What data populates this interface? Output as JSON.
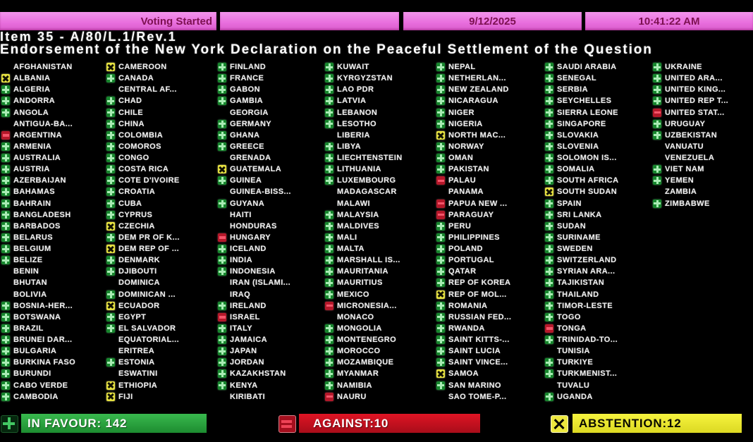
{
  "status_bar": {
    "status": "Voting Started",
    "date": "9/12/2025",
    "time": "10:41:22 AM"
  },
  "header": {
    "item_line": "Item 35 - A/80/L.1/Rev.1",
    "title_line": "Endorsement of the New York Declaration on the Peaceful Settlement of the Question"
  },
  "votes": {
    "legend": {
      "Y": "in favour (green plus)",
      "N": "against (red minus)",
      "A": "abstention (yellow x)",
      "": "no vote shown"
    },
    "columns": [
      [
        {
          "name": "AFGHANISTAN",
          "vote": ""
        },
        {
          "name": "ALBANIA",
          "vote": "A"
        },
        {
          "name": "ALGERIA",
          "vote": "Y"
        },
        {
          "name": "ANDORRA",
          "vote": "Y"
        },
        {
          "name": "ANGOLA",
          "vote": "Y"
        },
        {
          "name": "ANTIGUA-BA...",
          "vote": ""
        },
        {
          "name": "ARGENTINA",
          "vote": "N"
        },
        {
          "name": "ARMENIA",
          "vote": "Y"
        },
        {
          "name": "AUSTRALIA",
          "vote": "Y"
        },
        {
          "name": "AUSTRIA",
          "vote": "Y"
        },
        {
          "name": "AZERBAIJAN",
          "vote": "Y"
        },
        {
          "name": "BAHAMAS",
          "vote": "Y"
        },
        {
          "name": "BAHRAIN",
          "vote": "Y"
        },
        {
          "name": "BANGLADESH",
          "vote": "Y"
        },
        {
          "name": "BARBADOS",
          "vote": "Y"
        },
        {
          "name": "BELARUS",
          "vote": "Y"
        },
        {
          "name": "BELGIUM",
          "vote": "Y"
        },
        {
          "name": "BELIZE",
          "vote": "Y"
        },
        {
          "name": "BENIN",
          "vote": ""
        },
        {
          "name": "BHUTAN",
          "vote": ""
        },
        {
          "name": "BOLIVIA",
          "vote": ""
        },
        {
          "name": "BOSNIA-HER...",
          "vote": "Y"
        },
        {
          "name": "BOTSWANA",
          "vote": "Y"
        },
        {
          "name": "BRAZIL",
          "vote": "Y"
        },
        {
          "name": "BRUNEI DAR...",
          "vote": "Y"
        },
        {
          "name": "BULGARIA",
          "vote": "Y"
        },
        {
          "name": "BURKINA FASO",
          "vote": "Y"
        },
        {
          "name": "BURUNDI",
          "vote": "Y"
        },
        {
          "name": "CABO VERDE",
          "vote": "Y"
        },
        {
          "name": "CAMBODIA",
          "vote": "Y"
        }
      ],
      [
        {
          "name": "CAMEROON",
          "vote": "A"
        },
        {
          "name": "CANADA",
          "vote": "Y"
        },
        {
          "name": "CENTRAL AF...",
          "vote": ""
        },
        {
          "name": "CHAD",
          "vote": "Y"
        },
        {
          "name": "CHILE",
          "vote": "Y"
        },
        {
          "name": "CHINA",
          "vote": "Y"
        },
        {
          "name": "COLOMBIA",
          "vote": "Y"
        },
        {
          "name": "COMOROS",
          "vote": "Y"
        },
        {
          "name": "CONGO",
          "vote": "Y"
        },
        {
          "name": "COSTA RICA",
          "vote": "Y"
        },
        {
          "name": "COTE D'IVOIRE",
          "vote": "Y"
        },
        {
          "name": "CROATIA",
          "vote": "Y"
        },
        {
          "name": "CUBA",
          "vote": "Y"
        },
        {
          "name": "CYPRUS",
          "vote": "Y"
        },
        {
          "name": "CZECHIA",
          "vote": "A"
        },
        {
          "name": "DEM PR OF K...",
          "vote": "Y"
        },
        {
          "name": "DEM REP OF ...",
          "vote": "A"
        },
        {
          "name": "DENMARK",
          "vote": "Y"
        },
        {
          "name": "DJIBOUTI",
          "vote": "Y"
        },
        {
          "name": "DOMINICA",
          "vote": ""
        },
        {
          "name": "DOMINICAN ...",
          "vote": "Y"
        },
        {
          "name": "ECUADOR",
          "vote": "A"
        },
        {
          "name": "EGYPT",
          "vote": "Y"
        },
        {
          "name": "EL SALVADOR",
          "vote": "Y"
        },
        {
          "name": "EQUATORIAL...",
          "vote": ""
        },
        {
          "name": "ERITREA",
          "vote": ""
        },
        {
          "name": "ESTONIA",
          "vote": "Y"
        },
        {
          "name": "ESWATINI",
          "vote": ""
        },
        {
          "name": "ETHIOPIA",
          "vote": "A"
        },
        {
          "name": "FIJI",
          "vote": "A"
        }
      ],
      [
        {
          "name": "FINLAND",
          "vote": "Y"
        },
        {
          "name": "FRANCE",
          "vote": "Y"
        },
        {
          "name": "GABON",
          "vote": "Y"
        },
        {
          "name": "GAMBIA",
          "vote": "Y"
        },
        {
          "name": "GEORGIA",
          "vote": ""
        },
        {
          "name": "GERMANY",
          "vote": "Y"
        },
        {
          "name": "GHANA",
          "vote": "Y"
        },
        {
          "name": "GREECE",
          "vote": "Y"
        },
        {
          "name": "GRENADA",
          "vote": ""
        },
        {
          "name": "GUATEMALA",
          "vote": "A"
        },
        {
          "name": "GUINEA",
          "vote": "Y"
        },
        {
          "name": "GUINEA-BISS...",
          "vote": ""
        },
        {
          "name": "GUYANA",
          "vote": "Y"
        },
        {
          "name": "HAITI",
          "vote": ""
        },
        {
          "name": "HONDURAS",
          "vote": ""
        },
        {
          "name": "HUNGARY",
          "vote": "N"
        },
        {
          "name": "ICELAND",
          "vote": "Y"
        },
        {
          "name": "INDIA",
          "vote": "Y"
        },
        {
          "name": "INDONESIA",
          "vote": "Y"
        },
        {
          "name": "IRAN (ISLAMI...",
          "vote": ""
        },
        {
          "name": "IRAQ",
          "vote": ""
        },
        {
          "name": "IRELAND",
          "vote": "Y"
        },
        {
          "name": "ISRAEL",
          "vote": "N"
        },
        {
          "name": "ITALY",
          "vote": "Y"
        },
        {
          "name": "JAMAICA",
          "vote": "Y"
        },
        {
          "name": "JAPAN",
          "vote": "Y"
        },
        {
          "name": "JORDAN",
          "vote": "Y"
        },
        {
          "name": "KAZAKHSTAN",
          "vote": "Y"
        },
        {
          "name": "KENYA",
          "vote": "Y"
        },
        {
          "name": "KIRIBATI",
          "vote": ""
        }
      ],
      [
        {
          "name": "KUWAIT",
          "vote": "Y"
        },
        {
          "name": "KYRGYZSTAN",
          "vote": "Y"
        },
        {
          "name": "LAO PDR",
          "vote": "Y"
        },
        {
          "name": "LATVIA",
          "vote": "Y"
        },
        {
          "name": "LEBANON",
          "vote": "Y"
        },
        {
          "name": "LESOTHO",
          "vote": "Y"
        },
        {
          "name": "LIBERIA",
          "vote": ""
        },
        {
          "name": "LIBYA",
          "vote": "Y"
        },
        {
          "name": "LIECHTENSTEIN",
          "vote": "Y"
        },
        {
          "name": "LITHUANIA",
          "vote": "Y"
        },
        {
          "name": "LUXEMBOURG",
          "vote": "Y"
        },
        {
          "name": "MADAGASCAR",
          "vote": ""
        },
        {
          "name": "MALAWI",
          "vote": ""
        },
        {
          "name": "MALAYSIA",
          "vote": "Y"
        },
        {
          "name": "MALDIVES",
          "vote": "Y"
        },
        {
          "name": "MALI",
          "vote": "Y"
        },
        {
          "name": "MALTA",
          "vote": "Y"
        },
        {
          "name": "MARSHALL IS...",
          "vote": "Y"
        },
        {
          "name": "MAURITANIA",
          "vote": "Y"
        },
        {
          "name": "MAURITIUS",
          "vote": "Y"
        },
        {
          "name": "MEXICO",
          "vote": "Y"
        },
        {
          "name": "MICRONESIA...",
          "vote": "N"
        },
        {
          "name": "MONACO",
          "vote": ""
        },
        {
          "name": "MONGOLIA",
          "vote": "Y"
        },
        {
          "name": "MONTENEGRO",
          "vote": "Y"
        },
        {
          "name": "MOROCCO",
          "vote": "Y"
        },
        {
          "name": "MOZAMBIQUE",
          "vote": "Y"
        },
        {
          "name": "MYANMAR",
          "vote": "Y"
        },
        {
          "name": "NAMIBIA",
          "vote": "Y"
        },
        {
          "name": "NAURU",
          "vote": "N"
        }
      ],
      [
        {
          "name": "NEPAL",
          "vote": "Y"
        },
        {
          "name": "NETHERLAN...",
          "vote": "Y"
        },
        {
          "name": "NEW ZEALAND",
          "vote": "Y"
        },
        {
          "name": "NICARAGUA",
          "vote": "Y"
        },
        {
          "name": "NIGER",
          "vote": "Y"
        },
        {
          "name": "NIGERIA",
          "vote": "Y"
        },
        {
          "name": "NORTH MAC...",
          "vote": "A"
        },
        {
          "name": "NORWAY",
          "vote": "Y"
        },
        {
          "name": "OMAN",
          "vote": "Y"
        },
        {
          "name": "PAKISTAN",
          "vote": "Y"
        },
        {
          "name": "PALAU",
          "vote": "N"
        },
        {
          "name": "PANAMA",
          "vote": ""
        },
        {
          "name": "PAPUA NEW ...",
          "vote": "N"
        },
        {
          "name": "PARAGUAY",
          "vote": "N"
        },
        {
          "name": "PERU",
          "vote": "Y"
        },
        {
          "name": "PHILIPPINES",
          "vote": "Y"
        },
        {
          "name": "POLAND",
          "vote": "Y"
        },
        {
          "name": "PORTUGAL",
          "vote": "Y"
        },
        {
          "name": "QATAR",
          "vote": "Y"
        },
        {
          "name": "REP OF KOREA",
          "vote": "Y"
        },
        {
          "name": "REP OF MOL...",
          "vote": "A"
        },
        {
          "name": "ROMANIA",
          "vote": "Y"
        },
        {
          "name": "RUSSIAN FED...",
          "vote": "Y"
        },
        {
          "name": "RWANDA",
          "vote": "Y"
        },
        {
          "name": "SAINT KITTS-...",
          "vote": "Y"
        },
        {
          "name": "SAINT LUCIA",
          "vote": "Y"
        },
        {
          "name": "SAINT VINCE...",
          "vote": "Y"
        },
        {
          "name": "SAMOA",
          "vote": "A"
        },
        {
          "name": "SAN MARINO",
          "vote": "Y"
        },
        {
          "name": "SAO TOME-P...",
          "vote": ""
        }
      ],
      [
        {
          "name": "SAUDI ARABIA",
          "vote": "Y"
        },
        {
          "name": "SENEGAL",
          "vote": "Y"
        },
        {
          "name": "SERBIA",
          "vote": "Y"
        },
        {
          "name": "SEYCHELLES",
          "vote": "Y"
        },
        {
          "name": "SIERRA LEONE",
          "vote": "Y"
        },
        {
          "name": "SINGAPORE",
          "vote": "Y"
        },
        {
          "name": "SLOVAKIA",
          "vote": "Y"
        },
        {
          "name": "SLOVENIA",
          "vote": "Y"
        },
        {
          "name": "SOLOMON IS...",
          "vote": "Y"
        },
        {
          "name": "SOMALIA",
          "vote": "Y"
        },
        {
          "name": "SOUTH AFRICA",
          "vote": "Y"
        },
        {
          "name": "SOUTH SUDAN",
          "vote": "A"
        },
        {
          "name": "SPAIN",
          "vote": "Y"
        },
        {
          "name": "SRI LANKA",
          "vote": "Y"
        },
        {
          "name": "SUDAN",
          "vote": "Y"
        },
        {
          "name": "SURINAME",
          "vote": "Y"
        },
        {
          "name": "SWEDEN",
          "vote": "Y"
        },
        {
          "name": "SWITZERLAND",
          "vote": "Y"
        },
        {
          "name": "SYRIAN ARA...",
          "vote": "Y"
        },
        {
          "name": "TAJIKISTAN",
          "vote": "Y"
        },
        {
          "name": "THAILAND",
          "vote": "Y"
        },
        {
          "name": "TIMOR-LESTE",
          "vote": "Y"
        },
        {
          "name": "TOGO",
          "vote": "Y"
        },
        {
          "name": "TONGA",
          "vote": "N"
        },
        {
          "name": "TRINIDAD-TO...",
          "vote": "Y"
        },
        {
          "name": "TUNISIA",
          "vote": ""
        },
        {
          "name": "TURKIYE",
          "vote": "Y"
        },
        {
          "name": "TURKMENIST...",
          "vote": "Y"
        },
        {
          "name": "TUVALU",
          "vote": ""
        },
        {
          "name": "UGANDA",
          "vote": "Y"
        }
      ],
      [
        {
          "name": "UKRAINE",
          "vote": "Y"
        },
        {
          "name": "UNITED ARA...",
          "vote": "Y"
        },
        {
          "name": "UNITED KING...",
          "vote": "Y"
        },
        {
          "name": "UNITED REP T...",
          "vote": "Y"
        },
        {
          "name": "UNITED STAT...",
          "vote": "N"
        },
        {
          "name": "URUGUAY",
          "vote": "Y"
        },
        {
          "name": "UZBEKISTAN",
          "vote": "Y"
        },
        {
          "name": "VANUATU",
          "vote": ""
        },
        {
          "name": "VENEZUELA",
          "vote": ""
        },
        {
          "name": "VIET NAM",
          "vote": "Y"
        },
        {
          "name": "YEMEN",
          "vote": "Y"
        },
        {
          "name": "ZAMBIA",
          "vote": ""
        },
        {
          "name": "ZIMBABWE",
          "vote": "Y"
        }
      ]
    ]
  },
  "footer": {
    "in_favour_label": "IN FAVOUR: 142",
    "against_label": "AGAINST:10",
    "abstention_label": "ABSTENTION:12",
    "counts": {
      "in_favour": 142,
      "against": 10,
      "abstention": 12
    }
  },
  "colors": {
    "favour_green": "#17862d",
    "against_red": "#b5182a",
    "abstain_yellow": "#e6e140",
    "status_pink": "#e86edd",
    "footer_green_bar": "#1d8c30",
    "footer_red_bar": "#c01020",
    "footer_yellow_bar": "#eceb32"
  }
}
